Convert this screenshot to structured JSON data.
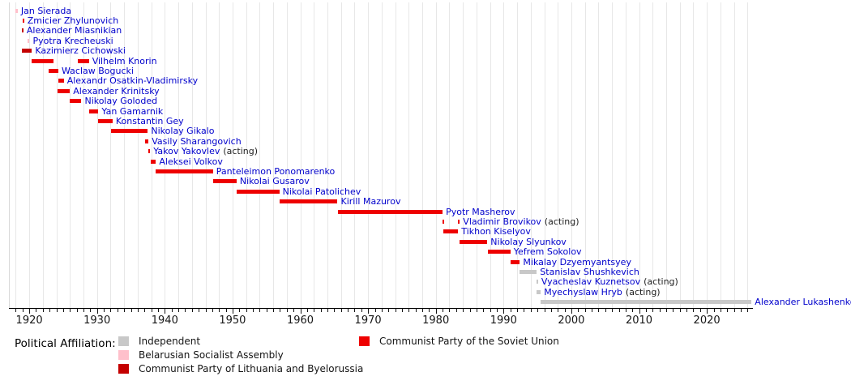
{
  "page": {
    "background": "#ffffff"
  },
  "colors": {
    "independent": "#c8c8c8",
    "bsa": "#ffc0cb",
    "cplb": "#c40000",
    "cpsu": "#ee0000",
    "name_label": "#0000cc",
    "acting_label": "#222222",
    "gridline": "#e7e7e7",
    "axis": "#000000",
    "tick_label": "#161616"
  },
  "legend": {
    "heading": "Political Affiliation:",
    "items": [
      {
        "label": "Independent",
        "affiliation": "independent"
      },
      {
        "label": "Belarusian Socialist Assembly",
        "affiliation": "bsa"
      },
      {
        "label": "Communist Party of Lithuania and Byelorussia",
        "affiliation": "cplb"
      },
      {
        "label": "Communist Party of the Soviet Union",
        "affiliation": "cpsu"
      }
    ]
  },
  "chart_data": {
    "type": "timeline",
    "unit": "year",
    "axis": {
      "start_year": 1917.0,
      "end_year": 2026.8,
      "decade_labels": [
        "1920",
        "1930",
        "1940",
        "1950",
        "1960",
        "1970",
        "1980",
        "1990",
        "2000",
        "2010",
        "2020"
      ],
      "gridline_step_years": 2,
      "tick_step_years": 1,
      "grid": "on",
      "legend_position": "bottom"
    },
    "leaders": [
      {
        "name": "Jan Sierada",
        "affiliation": "bsa",
        "terms": [
          [
            1918.0,
            1918.3
          ]
        ]
      },
      {
        "name": "Zmicier Zhylunovich",
        "affiliation": "cpsu",
        "terms": [
          [
            1919.0,
            1919.2
          ]
        ]
      },
      {
        "name": "Alexander Miasnikian",
        "affiliation": "cplb",
        "terms": [
          [
            1918.9,
            1919.1
          ]
        ]
      },
      {
        "name": "Pyotra Krecheuski",
        "affiliation": "bsa",
        "terms": [
          [
            1919.8,
            1920.05
          ]
        ]
      },
      {
        "name": "Kazimierz Cichowski",
        "affiliation": "cplb",
        "terms": [
          [
            1918.9,
            1920.4
          ]
        ]
      },
      {
        "name": "Vilhelm Knorin",
        "affiliation": "cpsu",
        "terms": [
          [
            1920.3,
            1923.6
          ],
          [
            1927.2,
            1928.8
          ]
        ]
      },
      {
        "name": "Waclaw Bogucki",
        "affiliation": "cpsu",
        "terms": [
          [
            1922.9,
            1924.3
          ]
        ]
      },
      {
        "name": "Alexandr Osatkin-Vladimirsky",
        "affiliation": "cpsu",
        "terms": [
          [
            1924.3,
            1925.1
          ]
        ]
      },
      {
        "name": "Alexander Krinitsky",
        "affiliation": "cpsu",
        "terms": [
          [
            1924.2,
            1926.0
          ]
        ]
      },
      {
        "name": "Nikolay Goloded",
        "affiliation": "cpsu",
        "terms": [
          [
            1926.0,
            1927.7
          ]
        ]
      },
      {
        "name": "Yan Gamarnik",
        "affiliation": "cpsu",
        "terms": [
          [
            1928.8,
            1930.2
          ]
        ]
      },
      {
        "name": "Konstantin Gey",
        "affiliation": "cpsu",
        "terms": [
          [
            1930.1,
            1932.3
          ]
        ]
      },
      {
        "name": "Nikolay Gikalo",
        "affiliation": "cpsu",
        "terms": [
          [
            1932.1,
            1937.5
          ]
        ]
      },
      {
        "name": "Vasily Sharangovich",
        "affiliation": "cpsu",
        "terms": [
          [
            1937.1,
            1937.6
          ]
        ]
      },
      {
        "name": "Yakov Yakovlev",
        "suffix": "(acting)",
        "affiliation": "cpsu",
        "terms": [
          [
            1937.6,
            1937.8
          ]
        ]
      },
      {
        "name": "Aleksei Volkov",
        "affiliation": "cpsu",
        "terms": [
          [
            1937.9,
            1938.7
          ]
        ]
      },
      {
        "name": "Panteleimon Ponomarenko",
        "affiliation": "cpsu",
        "terms": [
          [
            1938.7,
            1947.1
          ]
        ]
      },
      {
        "name": "Nikolai Gusarov",
        "affiliation": "cpsu",
        "terms": [
          [
            1947.1,
            1950.6
          ]
        ]
      },
      {
        "name": "Nikolai Patolichev",
        "affiliation": "cpsu",
        "terms": [
          [
            1950.6,
            1956.9
          ]
        ]
      },
      {
        "name": "Kirill Mazurov",
        "affiliation": "cpsu",
        "terms": [
          [
            1956.9,
            1965.5
          ]
        ]
      },
      {
        "name": "Pyotr Masherov",
        "affiliation": "cpsu",
        "terms": [
          [
            1965.5,
            1981.0
          ]
        ]
      },
      {
        "name": "Vladimir Brovikov",
        "suffix": "(acting)",
        "affiliation": "cpsu",
        "terms": [
          [
            1981.0,
            1981.2
          ],
          [
            1983.3,
            1983.5
          ]
        ]
      },
      {
        "name": "Tikhon Kiselyov",
        "affiliation": "cpsu",
        "terms": [
          [
            1981.1,
            1983.3
          ]
        ]
      },
      {
        "name": "Nikolay Slyunkov",
        "affiliation": "cpsu",
        "terms": [
          [
            1983.5,
            1987.6
          ]
        ]
      },
      {
        "name": "Yefrem Sokolov",
        "affiliation": "cpsu",
        "terms": [
          [
            1987.7,
            1991.0
          ]
        ]
      },
      {
        "name": "Mikalay Dzyemyantsyey",
        "affiliation": "cpsu",
        "terms": [
          [
            1991.0,
            1992.4
          ]
        ]
      },
      {
        "name": "Stanislav Shushkevich",
        "affiliation": "independent",
        "terms": [
          [
            1992.3,
            1994.9
          ]
        ]
      },
      {
        "name": "Vyacheslav Kuznetsov",
        "suffix": "(acting)",
        "affiliation": "independent",
        "terms": [
          [
            1994.85,
            1995.0
          ]
        ]
      },
      {
        "name": "Myechyslaw Hryb",
        "suffix": "(acting)",
        "affiliation": "independent",
        "terms": [
          [
            1994.9,
            1995.5
          ]
        ]
      },
      {
        "name": "Alexander Lukashenko",
        "affiliation": "independent",
        "terms": [
          [
            1995.5,
            2026.6
          ]
        ]
      }
    ]
  }
}
